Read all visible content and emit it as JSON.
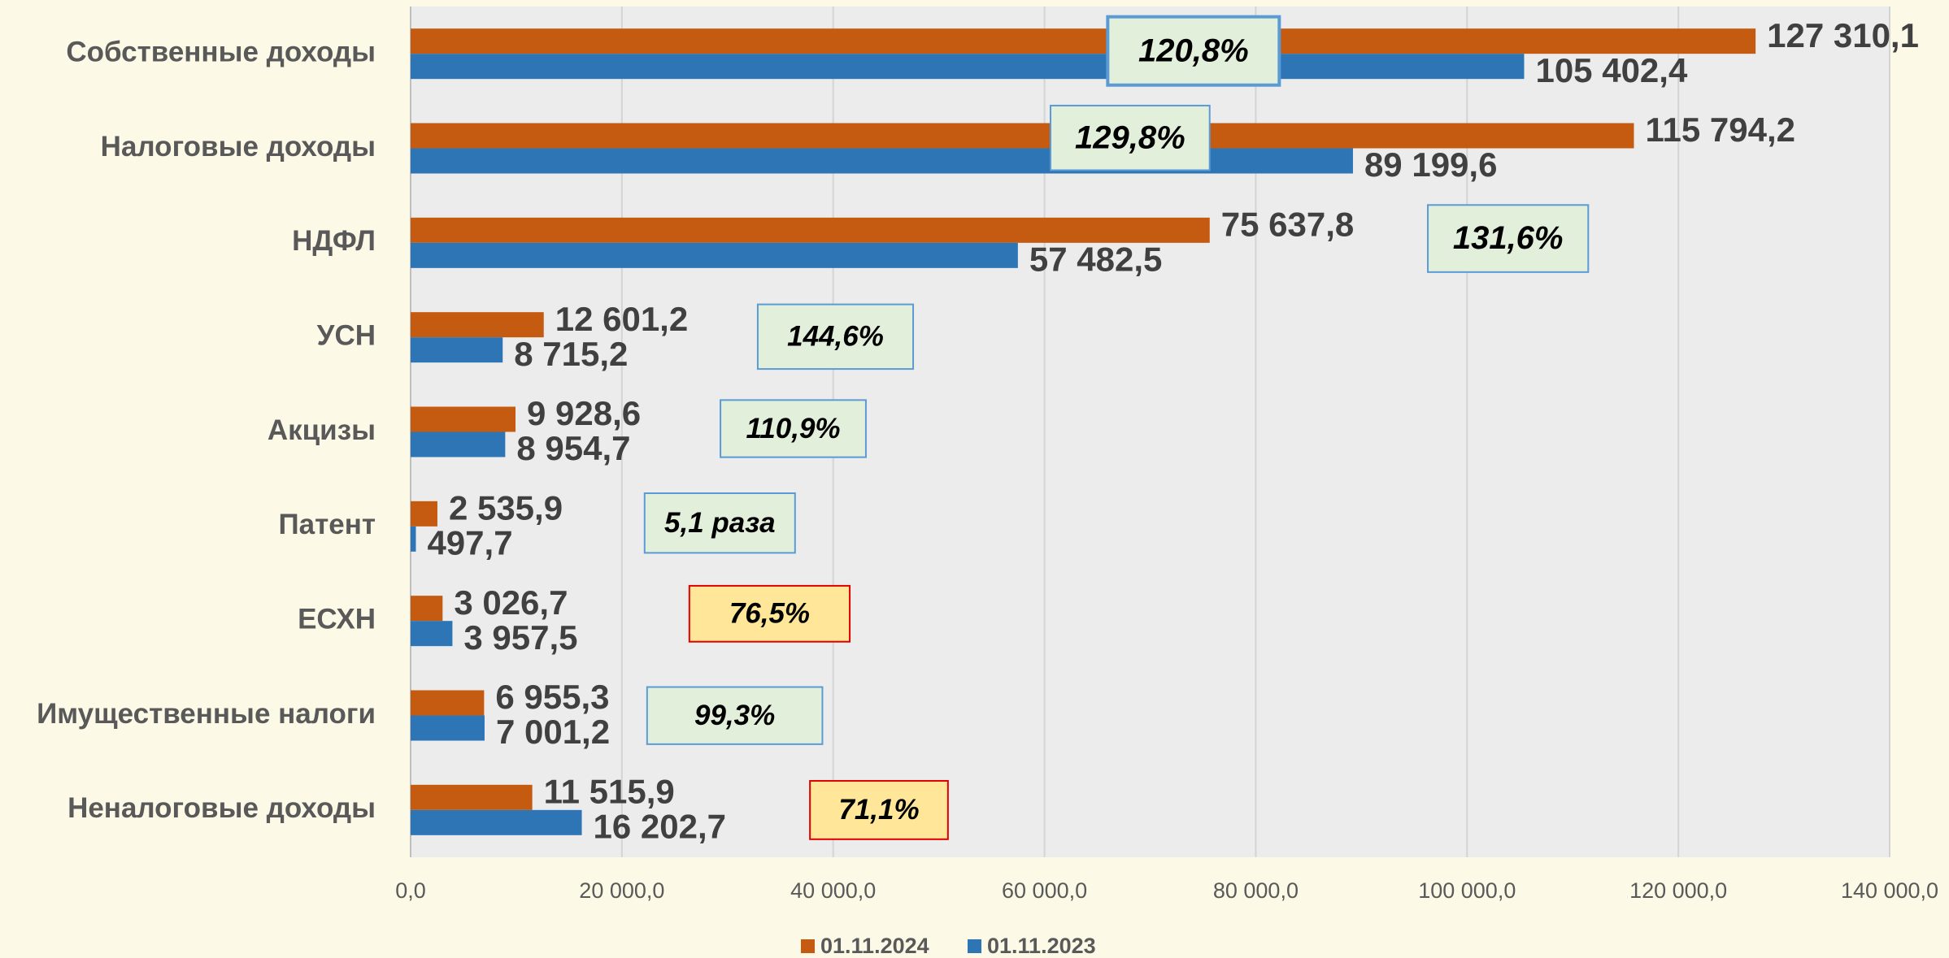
{
  "chart_data": {
    "type": "hbar",
    "categories": [
      "Собственные доходы",
      "Налоговые доходы",
      "НДФЛ",
      "УСН",
      "Акцизы",
      "Патент",
      "ЕСХН",
      "Имущественные налоги",
      "Неналоговые доходы"
    ],
    "series": [
      {
        "name": "01.11.2024",
        "color": "#c55a11",
        "values": [
          127310.1,
          115794.2,
          75637.8,
          12601.2,
          9928.6,
          2535.9,
          3026.7,
          6955.3,
          11515.9
        ],
        "value_labels": [
          "127 310,1",
          "115 794,2",
          "75 637,8",
          "12 601,2",
          "9 928,6",
          "2 535,9",
          "3 026,7",
          "6 955,3",
          "11 515,9"
        ]
      },
      {
        "name": "01.11.2023",
        "color": "#2e75b6",
        "values": [
          105402.4,
          89199.6,
          57482.5,
          8715.2,
          8954.7,
          497.7,
          3957.5,
          7001.2,
          16202.7
        ],
        "value_labels": [
          "105 402,4",
          "89 199,6",
          "57 482,5",
          "8 715,2",
          "8 954,7",
          "497,7",
          "3 957,5",
          "7 001,2",
          "16 202,7"
        ]
      }
    ],
    "xlim": [
      0,
      140000
    ],
    "xticks": [
      {
        "value": 0,
        "label": "0,0"
      },
      {
        "value": 20000,
        "label": "20 000,0"
      },
      {
        "value": 40000,
        "label": "40 000,0"
      },
      {
        "value": 60000,
        "label": "60 000,0"
      },
      {
        "value": 80000,
        "label": "80 000,0"
      },
      {
        "value": 100000,
        "label": "100 000,0"
      },
      {
        "value": 120000,
        "label": "120 000,0"
      },
      {
        "value": 140000,
        "label": "140 000,0"
      }
    ],
    "grid": true,
    "legend": "bottom",
    "annotations": [
      {
        "text": "120,8%",
        "fill": "#e2efda",
        "border": "#5b9bd5"
      },
      {
        "text": "129,8%",
        "fill": "#e2efda",
        "border": "#5b9bd5"
      },
      {
        "text": "131,6%",
        "fill": "#e2efda",
        "border": "#5b9bd5"
      },
      {
        "text": "144,6%",
        "fill": "#e2efda",
        "border": "#5b9bd5"
      },
      {
        "text": "110,9%",
        "fill": "#e2efda",
        "border": "#5b9bd5"
      },
      {
        "text": "5,1 раза",
        "fill": "#e2efda",
        "border": "#5b9bd5"
      },
      {
        "text": "76,5%",
        "fill": "#ffe699",
        "border": "#e00000"
      },
      {
        "text": "99,3%",
        "fill": "#e2efda",
        "border": "#5b9bd5"
      },
      {
        "text": "71,1%",
        "fill": "#ffe699",
        "border": "#e00000"
      }
    ]
  }
}
